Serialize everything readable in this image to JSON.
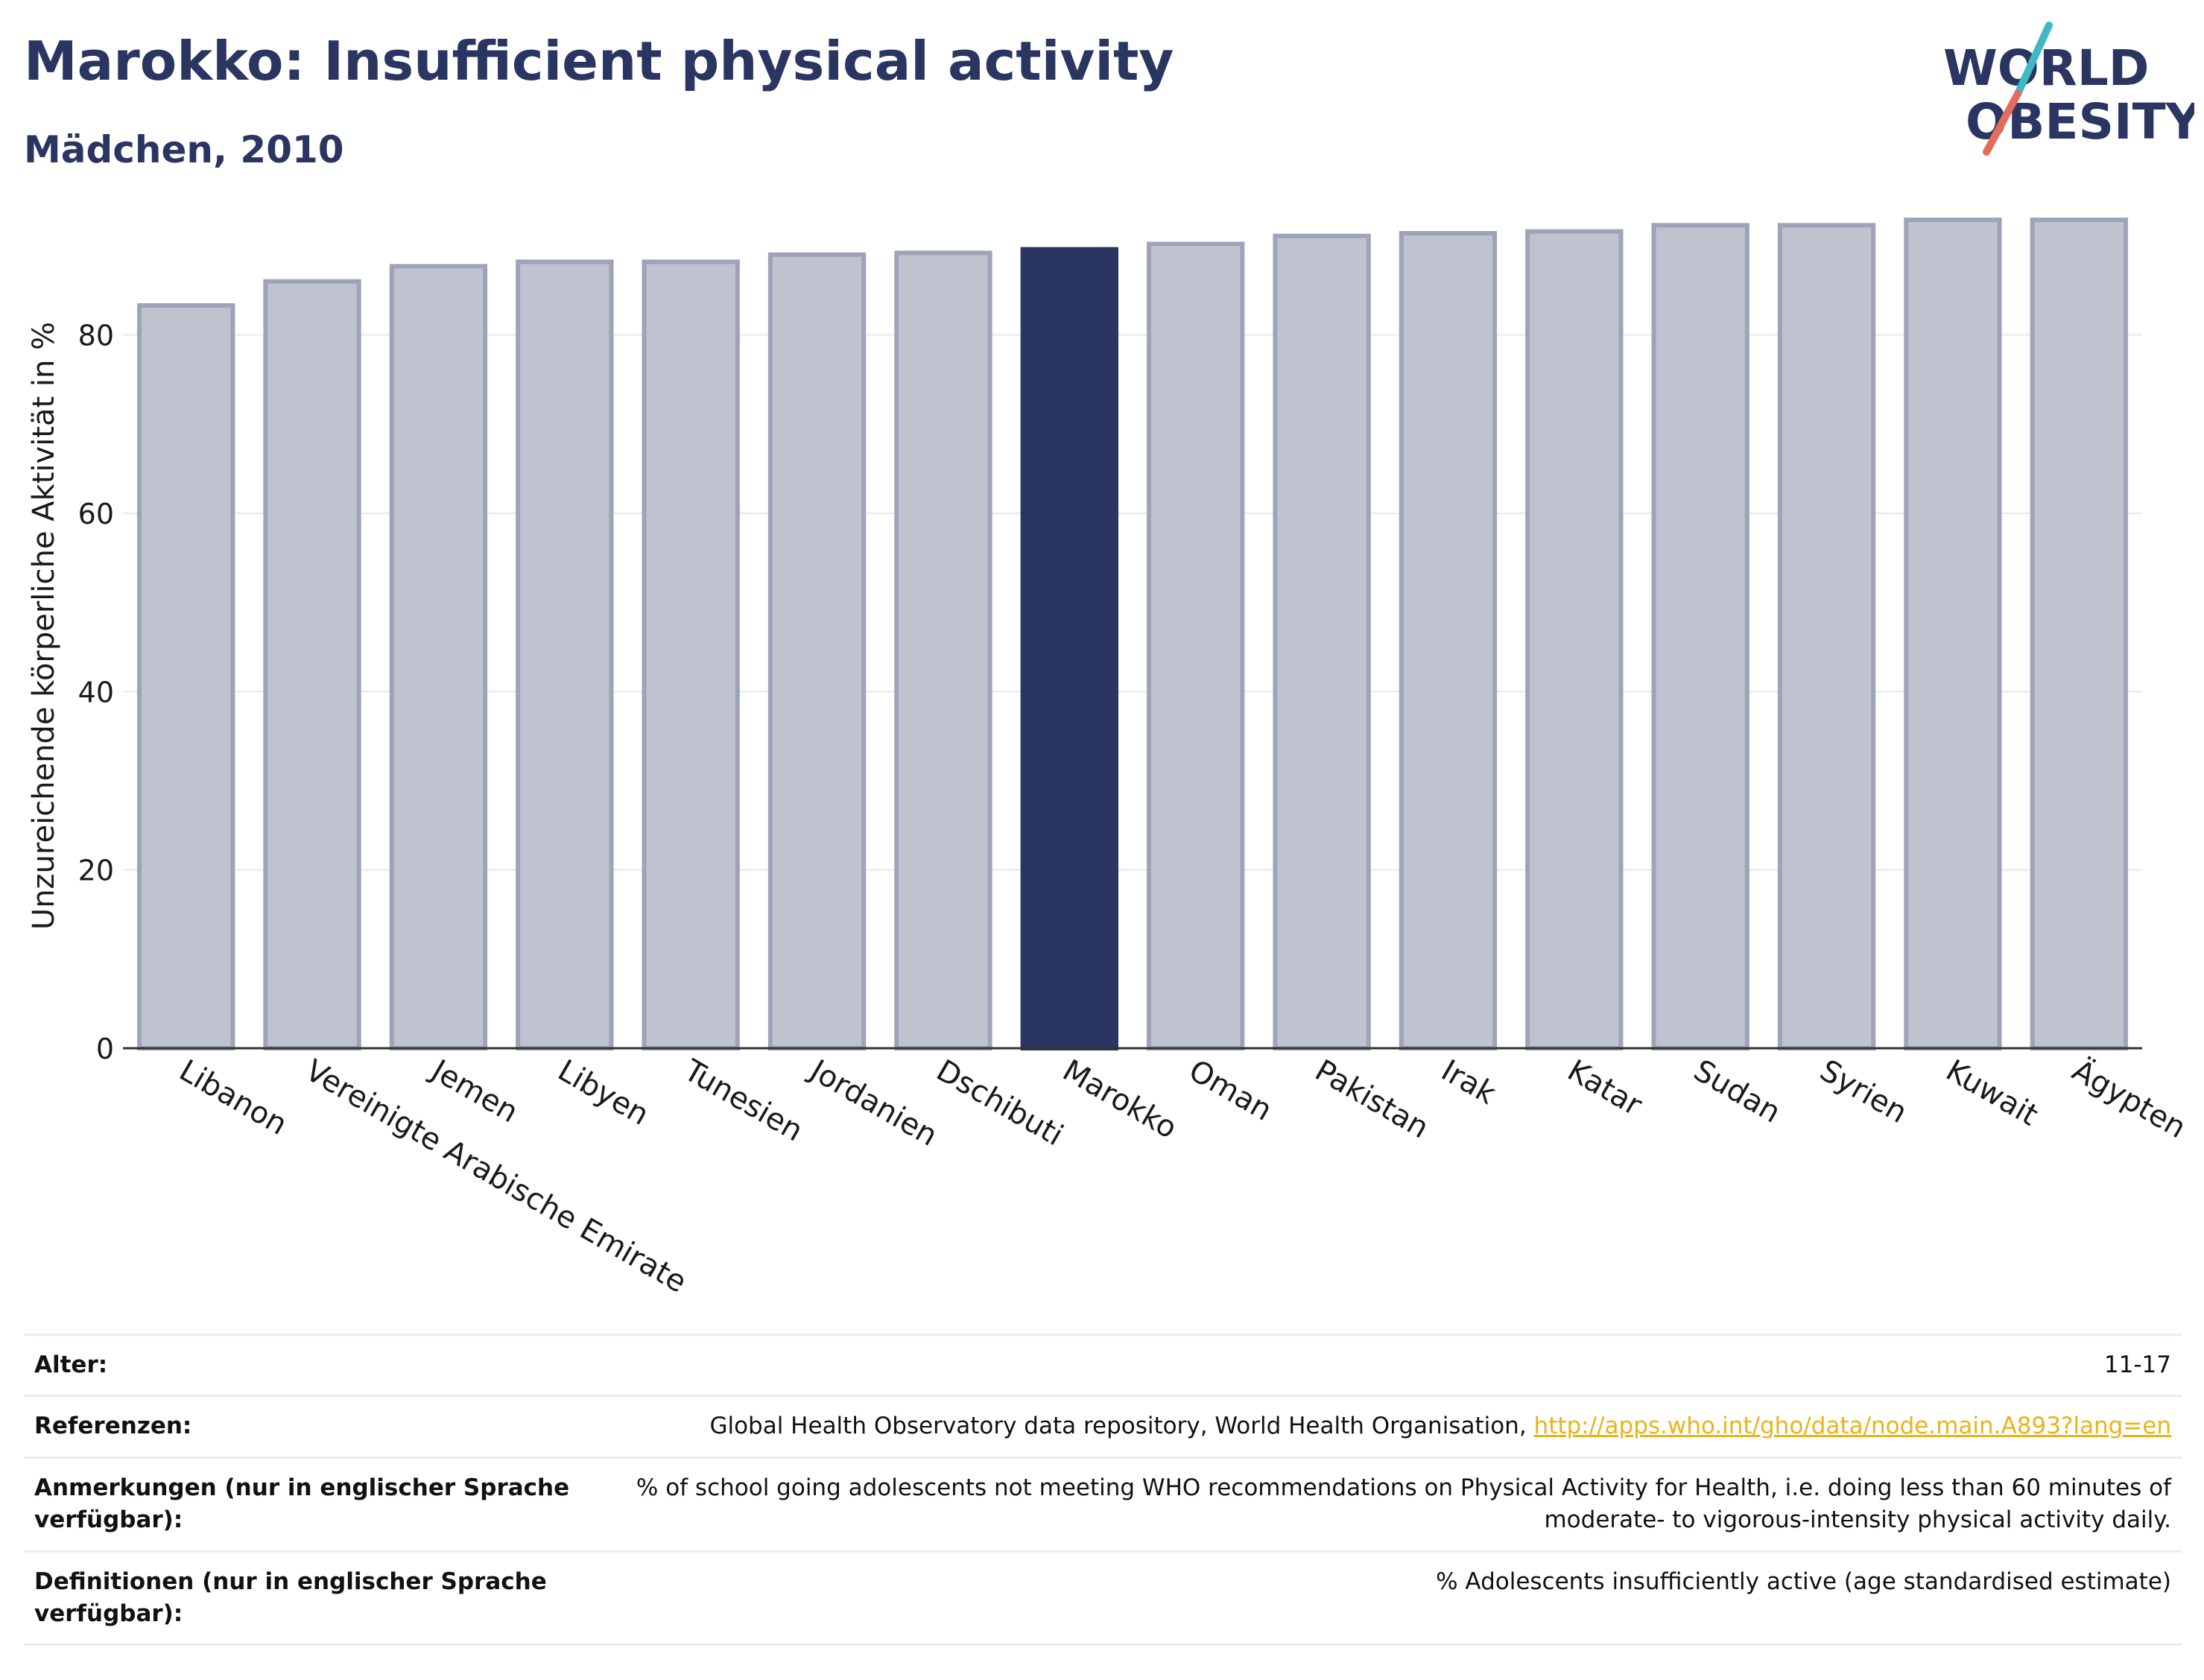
{
  "header": {
    "title": "Marokko: Insufficient physical activity",
    "subtitle": "Mädchen, 2010"
  },
  "logo": {
    "line1": "WORLD",
    "line2": "OBESITY",
    "slash_colors": [
      "#3fb8c4",
      "#e56b5d"
    ]
  },
  "chart_data": {
    "type": "bar",
    "categories": [
      "Libanon",
      "Vereinigte Arabische Emirate",
      "Jemen",
      "Libyen",
      "Tunesien",
      "Jordanien",
      "Dschibuti",
      "Marokko",
      "Oman",
      "Pakistan",
      "Irak",
      "Katar",
      "Sudan",
      "Syrien",
      "Kuwait",
      "Ägypten"
    ],
    "values": [
      83.3,
      86.0,
      87.7,
      88.2,
      88.2,
      89.0,
      89.2,
      89.6,
      90.2,
      91.1,
      91.4,
      91.6,
      92.3,
      92.3,
      92.9,
      92.9
    ],
    "highlight": "Marokko",
    "ylabel": "Unzureichende körperliche Aktivität in %",
    "xlabel": "",
    "ylim": [
      0,
      95
    ],
    "yticks": [
      0,
      20,
      40,
      60,
      80
    ],
    "grid": true,
    "colors": {
      "bar": "#bfc2cf",
      "bar_border": "#9ea3b8",
      "highlight": "#2a3561"
    }
  },
  "info": {
    "rows": [
      {
        "label": "Alter:",
        "value": "11-17"
      },
      {
        "label": "Referenzen:",
        "value": "Global Health Observatory data repository, World Health Organisation, ",
        "link": "http://apps.who.int/gho/data/node.main.A893?lang=en"
      },
      {
        "label": "Anmerkungen (nur in englischer Sprache verfügbar):",
        "value": "% of school going adolescents not meeting WHO recommendations on Physical Activity for Health, i.e. doing less than 60 minutes of moderate- to vigorous-intensity physical activity daily."
      },
      {
        "label": "Definitionen (nur in englischer Sprache verfügbar):",
        "value": "% Adolescents insufficiently active (age standardised estimate)"
      }
    ]
  }
}
